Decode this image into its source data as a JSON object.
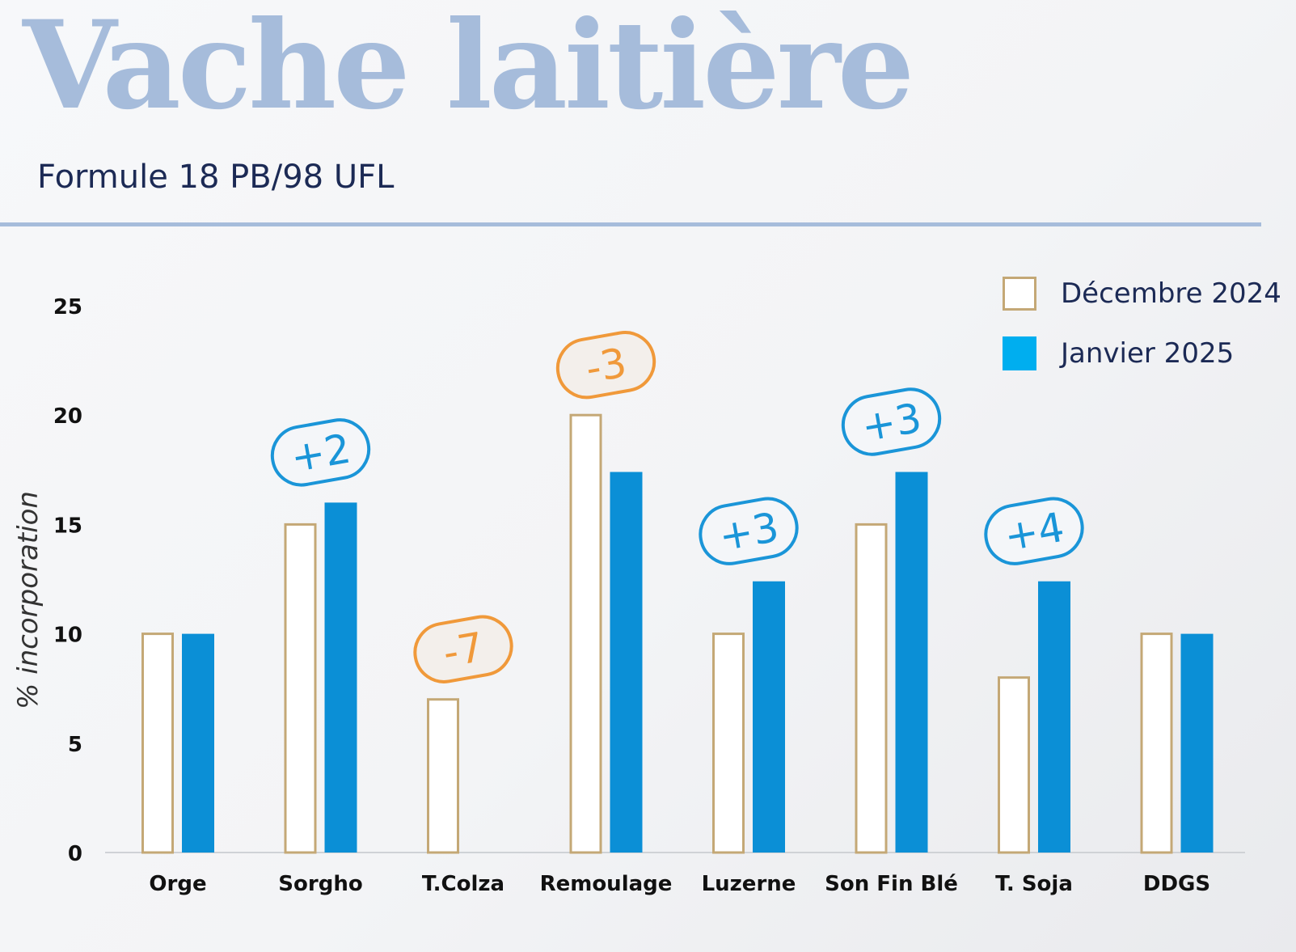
{
  "title": "Vache laitière",
  "subtitle": "Formule 18 PB/98 UFL",
  "colors": {
    "dec_border": "#c4a876",
    "jan_fill": "#0b8fd6",
    "badge_blue": "#1a95d8",
    "badge_orange": "#f0993a",
    "title": "#a6bcdb",
    "rule": "#a6bcdb",
    "text_dark": "#1c2a55",
    "axis_text": "#111111"
  },
  "legend": {
    "dec": "Décembre 2024",
    "jan": "Janvier 2025"
  },
  "chart_data": {
    "type": "bar",
    "ylabel": "% incorporation",
    "ylim": [
      0,
      25
    ],
    "yticks": [
      0,
      5,
      10,
      15,
      20,
      25
    ],
    "categories": [
      "Orge",
      "Sorgho",
      "T.Colza",
      "Remoulage",
      "Luzerne",
      "Son Fin Blé",
      "T. Soja",
      "DDGS"
    ],
    "series": [
      {
        "name": "Décembre 2024",
        "values": [
          10,
          15,
          7,
          20,
          10,
          15,
          8,
          10
        ]
      },
      {
        "name": "Janvier 2025",
        "values": [
          10,
          16,
          0,
          17.4,
          12.4,
          17.4,
          12.4,
          10
        ]
      }
    ],
    "annotations": [
      {
        "category": "Sorgho",
        "text": "+2",
        "tone": "blue"
      },
      {
        "category": "T.Colza",
        "text": "-7",
        "tone": "orange"
      },
      {
        "category": "Remoulage",
        "text": "-3",
        "tone": "orange"
      },
      {
        "category": "Luzerne",
        "text": "+3",
        "tone": "blue"
      },
      {
        "category": "Son Fin Blé",
        "text": "+3",
        "tone": "blue"
      },
      {
        "category": "T. Soja",
        "text": "+4",
        "tone": "blue"
      }
    ],
    "grid": false,
    "legend_position": "top-right"
  }
}
